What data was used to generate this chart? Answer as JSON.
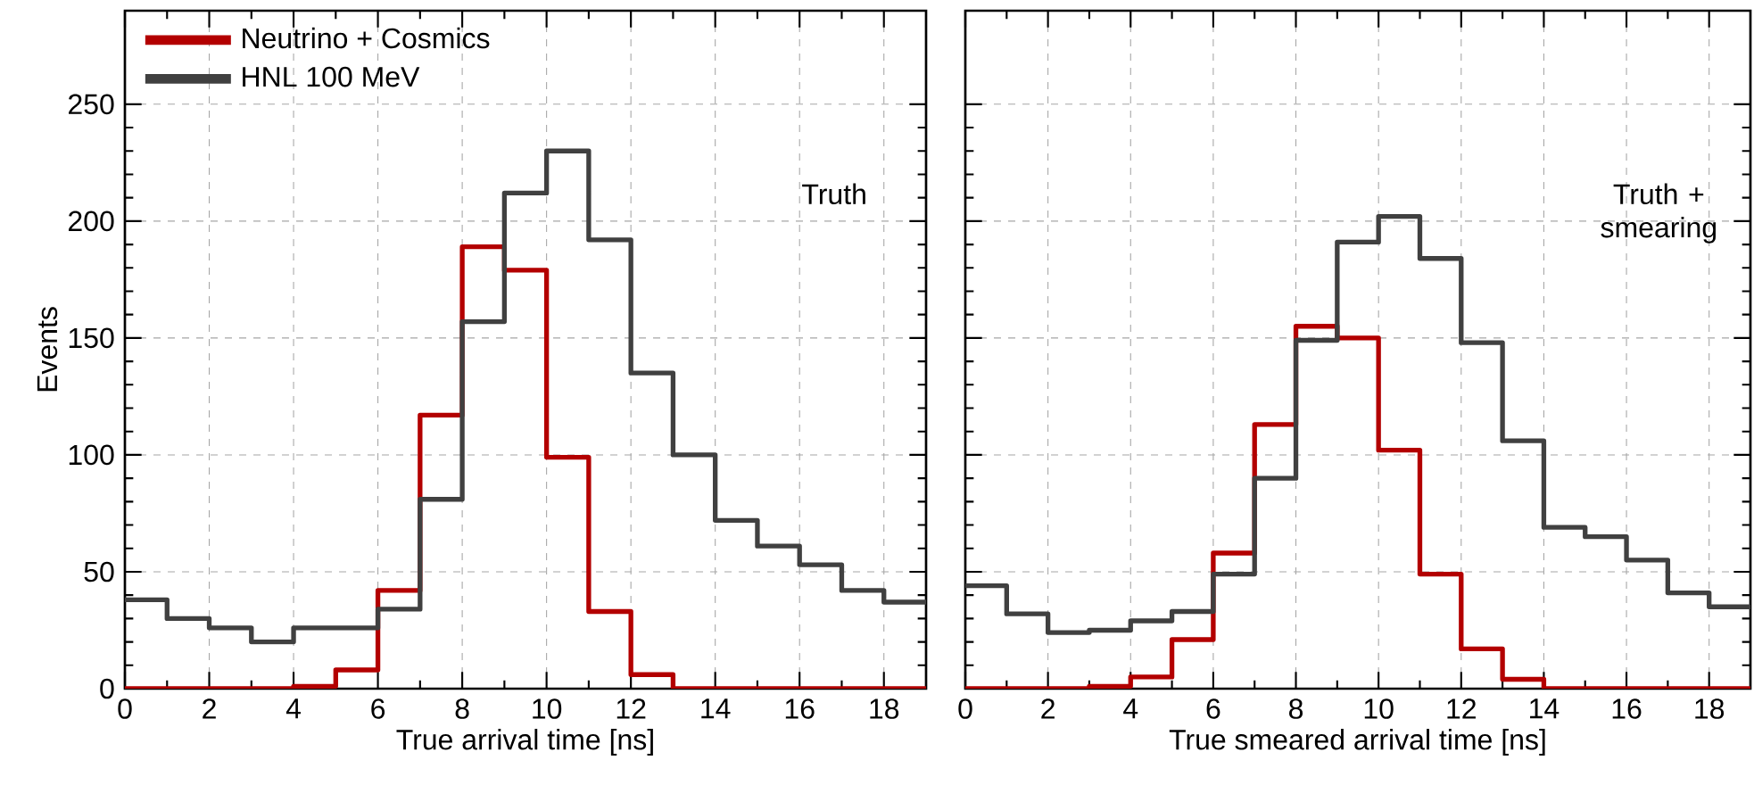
{
  "chart_data": [
    {
      "type": "histogram",
      "xlabel": "True arrival time [ns]",
      "ylabel": "Events",
      "annotations": [
        "Truth"
      ],
      "bins": [
        0,
        1,
        2,
        3,
        4,
        5,
        6,
        7,
        8,
        9,
        10,
        11,
        12,
        13,
        14,
        15,
        16,
        17,
        18,
        19
      ],
      "series": [
        {
          "name": "Neutrino + Cosmics",
          "color": "#b30000",
          "values": [
            0,
            0,
            0,
            0,
            1,
            8,
            42,
            117,
            189,
            179,
            99,
            33,
            6,
            0,
            0,
            0,
            0,
            0,
            0
          ]
        },
        {
          "name": "HNL 100 MeV",
          "color": "#404040",
          "values": [
            38,
            30,
            26,
            20,
            26,
            26,
            34,
            81,
            157,
            212,
            230,
            192,
            135,
            100,
            72,
            61,
            53,
            42,
            37
          ]
        }
      ],
      "xlim": [
        0,
        19
      ],
      "xticks": [
        0,
        2,
        4,
        6,
        8,
        10,
        12,
        14,
        16,
        18
      ],
      "ylim": [
        0,
        290
      ],
      "yticks": [
        0,
        50,
        100,
        150,
        200,
        250
      ],
      "grid": true,
      "legend": "top left"
    },
    {
      "type": "histogram",
      "xlabel": "True smeared arrival time [ns]",
      "annotations": [
        "Truth + smearing"
      ],
      "bins": [
        0,
        1,
        2,
        3,
        4,
        5,
        6,
        7,
        8,
        9,
        10,
        11,
        12,
        13,
        14,
        15,
        16,
        17,
        18,
        19
      ],
      "series": [
        {
          "color": "#b30000",
          "values": [
            0,
            0,
            0,
            1,
            5,
            21,
            58,
            113,
            155,
            150,
            102,
            49,
            17,
            4,
            0,
            0,
            0,
            0,
            0
          ]
        },
        {
          "color": "#404040",
          "values": [
            44,
            32,
            24,
            25,
            29,
            33,
            49,
            90,
            149,
            191,
            202,
            184,
            148,
            106,
            69,
            65,
            55,
            41,
            35
          ]
        }
      ],
      "xlim": [
        0,
        19
      ],
      "xticks": [
        0,
        2,
        4,
        6,
        8,
        10,
        12,
        14,
        16,
        18
      ],
      "ylim": [
        0,
        290
      ],
      "yticks": [
        0,
        50,
        100,
        150,
        200,
        250
      ],
      "grid": true,
      "tick_labels": "x"
    }
  ]
}
